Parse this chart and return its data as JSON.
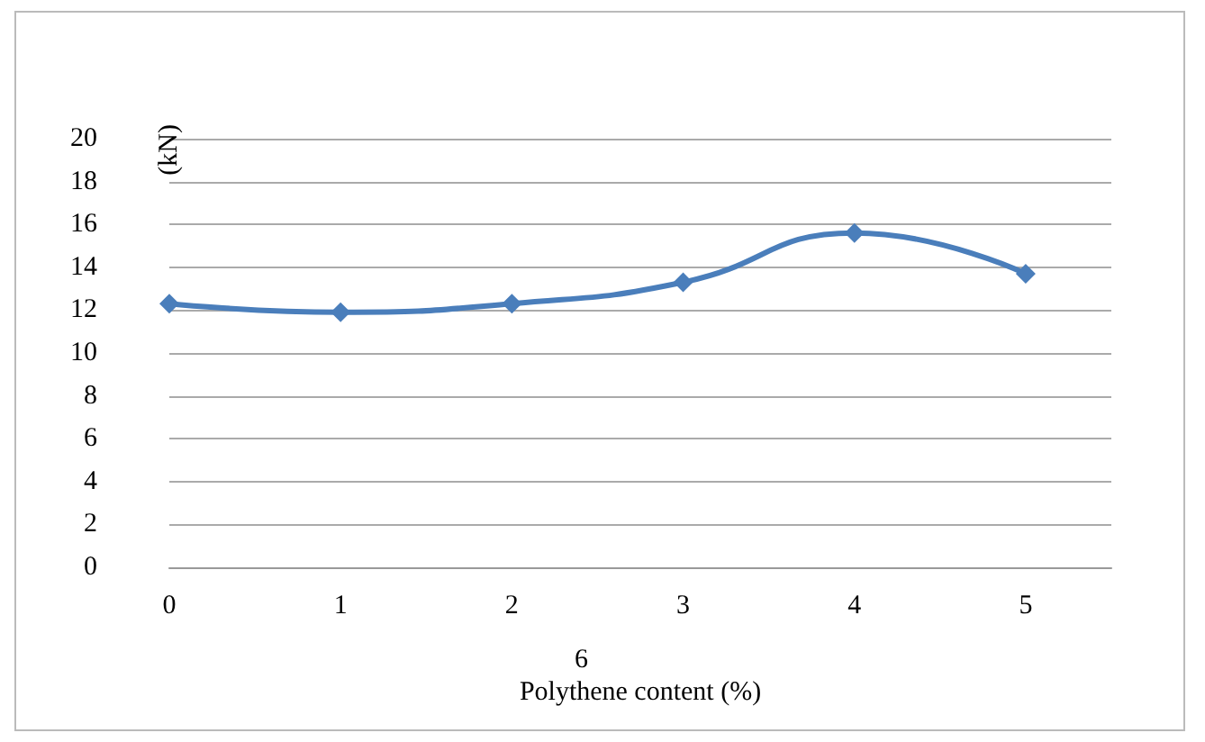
{
  "chart_data": {
    "type": "line",
    "xlabel": "Polythene content (%)",
    "ylabel": "(kN)",
    "x": [
      0,
      1,
      2,
      3,
      4,
      5
    ],
    "series": [
      {
        "color": "#4a7ebb",
        "values": [
          12.3,
          11.9,
          12.3,
          13.3,
          15.6,
          13.7
        ]
      }
    ],
    "xlim": [
      0,
      5.5
    ],
    "xticks": [
      0,
      1,
      2,
      3,
      4,
      5
    ],
    "ylim": [
      0,
      20
    ],
    "yticks": [
      0,
      2,
      4,
      6,
      8,
      10,
      12,
      14,
      16,
      18,
      20
    ],
    "grid": "y",
    "marker": "diamond",
    "line_style": "solid",
    "annotations": [
      "6"
    ]
  }
}
